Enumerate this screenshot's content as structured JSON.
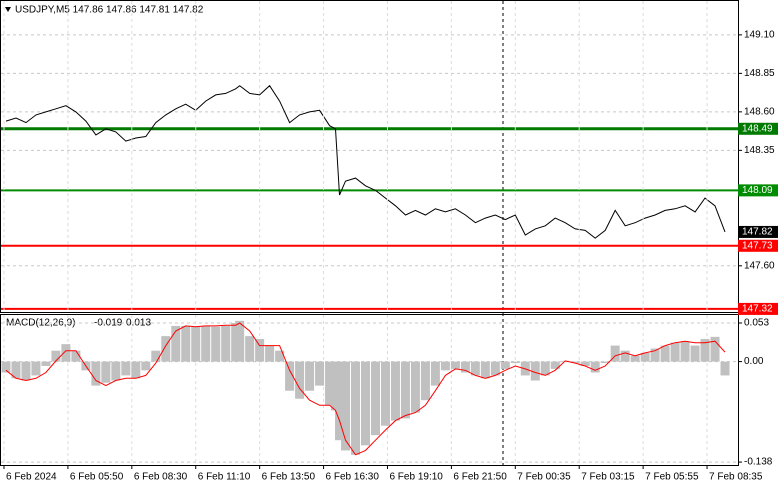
{
  "chart_data": [
    {
      "type": "line",
      "title": "USDJPY,M5  147.86 147.86 147.81 147.82",
      "color": "#000000",
      "x": [
        1,
        6,
        11,
        16,
        21,
        26,
        31,
        36,
        41,
        46,
        51,
        56,
        61,
        66,
        71,
        76,
        81,
        86,
        91,
        96,
        101,
        106,
        111,
        116,
        118,
        123,
        128,
        133,
        138,
        143,
        148,
        153,
        158,
        163,
        166,
        168,
        171,
        176,
        181,
        186,
        191,
        196,
        201,
        206,
        211,
        216,
        221,
        226,
        231,
        236,
        241,
        246,
        251,
        256,
        261,
        266,
        271,
        276,
        281,
        286,
        291,
        296,
        301,
        306,
        311,
        316,
        321,
        326,
        331,
        336,
        341,
        346,
        351,
        356,
        361
      ],
      "values": [
        148.54,
        148.56,
        148.53,
        148.58,
        148.6,
        148.62,
        148.64,
        148.6,
        148.54,
        148.45,
        148.49,
        148.47,
        148.41,
        148.43,
        148.44,
        148.53,
        148.58,
        148.62,
        148.65,
        148.61,
        148.67,
        148.71,
        148.72,
        148.75,
        148.77,
        148.72,
        148.71,
        148.77,
        148.67,
        148.53,
        148.58,
        148.6,
        148.61,
        148.51,
        148.49,
        148.06,
        148.15,
        148.17,
        148.12,
        148.09,
        148.04,
        147.99,
        147.93,
        147.96,
        147.93,
        147.97,
        147.95,
        147.97,
        147.93,
        147.88,
        147.91,
        147.93,
        147.9,
        147.93,
        147.8,
        147.84,
        147.86,
        147.91,
        147.88,
        147.84,
        147.83,
        147.78,
        147.83,
        147.96,
        147.86,
        147.88,
        147.91,
        147.93,
        147.96,
        147.97,
        147.99,
        147.95,
        148.04,
        147.99,
        147.82
      ],
      "xlim": [
        -1.5,
        367.5
      ],
      "ylim": [
        147.3,
        149.32
      ],
      "yticks": [
        {
          "value": 149.1,
          "label": "149.10"
        },
        148.85,
        {
          "value": 148.6,
          "label": "148.60"
        },
        148.35,
        {
          "value": 147.6,
          "label": "147.60"
        }
      ],
      "levels": [
        {
          "value": 148.49,
          "color": "#007a00"
        },
        {
          "value": 148.09,
          "color": "#008c00"
        },
        {
          "value": 147.73,
          "color": "#ff0000"
        },
        {
          "value": 147.32,
          "color": "#ff0000"
        }
      ],
      "grid": true
    },
    {
      "type": "macd",
      "title": "MACD(12,26,9)",
      "x": [
        1,
        6,
        11,
        16,
        21,
        26,
        31,
        36,
        41,
        46,
        51,
        56,
        61,
        66,
        71,
        76,
        81,
        86,
        91,
        96,
        101,
        106,
        111,
        116,
        118,
        123,
        128,
        133,
        138,
        143,
        148,
        153,
        158,
        163,
        166,
        168,
        171,
        176,
        181,
        186,
        191,
        196,
        201,
        206,
        211,
        216,
        221,
        226,
        231,
        236,
        241,
        246,
        251,
        256,
        261,
        266,
        271,
        276,
        281,
        286,
        291,
        296,
        301,
        306,
        311,
        316,
        321,
        326,
        331,
        336,
        341,
        346,
        351,
        356,
        361
      ],
      "series": [
        {
          "type": "bar",
          "color": "#c0c0c0",
          "values": [
            -0.015,
            -0.023,
            -0.026,
            -0.019,
            -0.006,
            0.015,
            0.024,
            0.015,
            -0.012,
            -0.033,
            -0.029,
            -0.026,
            -0.019,
            -0.023,
            -0.012,
            0.015,
            0.035,
            0.049,
            0.049,
            0.048,
            0.049,
            0.048,
            0.049,
            0.053,
            0.056,
            0.035,
            0.031,
            0.022,
            0.015,
            -0.04,
            -0.051,
            -0.04,
            -0.033,
            -0.06,
            -0.067,
            -0.108,
            -0.122,
            -0.128,
            -0.115,
            -0.101,
            -0.088,
            -0.081,
            -0.078,
            -0.07,
            -0.053,
            -0.033,
            -0.012,
            -0.01,
            -0.015,
            -0.019,
            -0.023,
            -0.019,
            -0.01,
            -0.002,
            -0.019,
            -0.026,
            -0.019,
            -0.01,
            0.001,
            -0.002,
            -0.006,
            -0.015,
            -0.002,
            0.022,
            0.015,
            0.008,
            0.012,
            0.018,
            0.022,
            0.026,
            0.028,
            0.022,
            0.031,
            0.034,
            -0.019
          ]
        },
        {
          "type": "line",
          "color": "#ff0000",
          "values": [
            -0.012,
            -0.023,
            -0.026,
            -0.023,
            -0.015,
            0.001,
            0.015,
            0.015,
            -0.006,
            -0.026,
            -0.033,
            -0.026,
            -0.023,
            -0.023,
            -0.019,
            -0.002,
            0.022,
            0.042,
            0.049,
            0.048,
            0.049,
            0.049,
            0.05,
            0.05,
            0.053,
            0.042,
            0.022,
            0.022,
            0.022,
            -0.012,
            -0.037,
            -0.053,
            -0.06,
            -0.06,
            -0.067,
            -0.081,
            -0.108,
            -0.128,
            -0.122,
            -0.108,
            -0.094,
            -0.081,
            -0.074,
            -0.07,
            -0.06,
            -0.04,
            -0.019,
            -0.01,
            -0.012,
            -0.019,
            -0.023,
            -0.019,
            -0.012,
            -0.006,
            -0.01,
            -0.015,
            -0.019,
            -0.012,
            0.001,
            -0.002,
            -0.006,
            -0.012,
            -0.006,
            0.008,
            0.012,
            0.008,
            0.012,
            0.015,
            0.022,
            0.026,
            0.028,
            0.026,
            0.026,
            0.028,
            0.013
          ]
        }
      ],
      "xlim": [
        -1.5,
        367.5
      ],
      "ylim": [
        -0.142,
        0.064
      ],
      "yticks": [
        0.053,
        {
          "value": 0,
          "label": "0.00"
        },
        -0.138
      ],
      "xticks": [
        {
          "value": 0,
          "label": "6 Feb 2024"
        },
        {
          "value": 32,
          "label": "6 Feb 05:50"
        },
        {
          "value": 64,
          "label": "6 Feb 08:30"
        },
        {
          "value": 96,
          "label": "6 Feb 11:10"
        },
        {
          "value": 128,
          "label": "6 Feb 13:50"
        },
        {
          "value": 160,
          "label": "6 Feb 16:30"
        },
        {
          "value": 192,
          "label": "6 Feb 19:10"
        },
        {
          "value": 224,
          "label": "6 Feb 21:50"
        },
        {
          "value": 256,
          "label": "7 Feb 00:35"
        },
        {
          "value": 288,
          "label": "7 Feb 03:15"
        },
        {
          "value": 320,
          "label": "7 Feb 05:55"
        },
        {
          "value": 352,
          "label": "7 Feb 08:35"
        }
      ],
      "grid": true
    }
  ]
}
